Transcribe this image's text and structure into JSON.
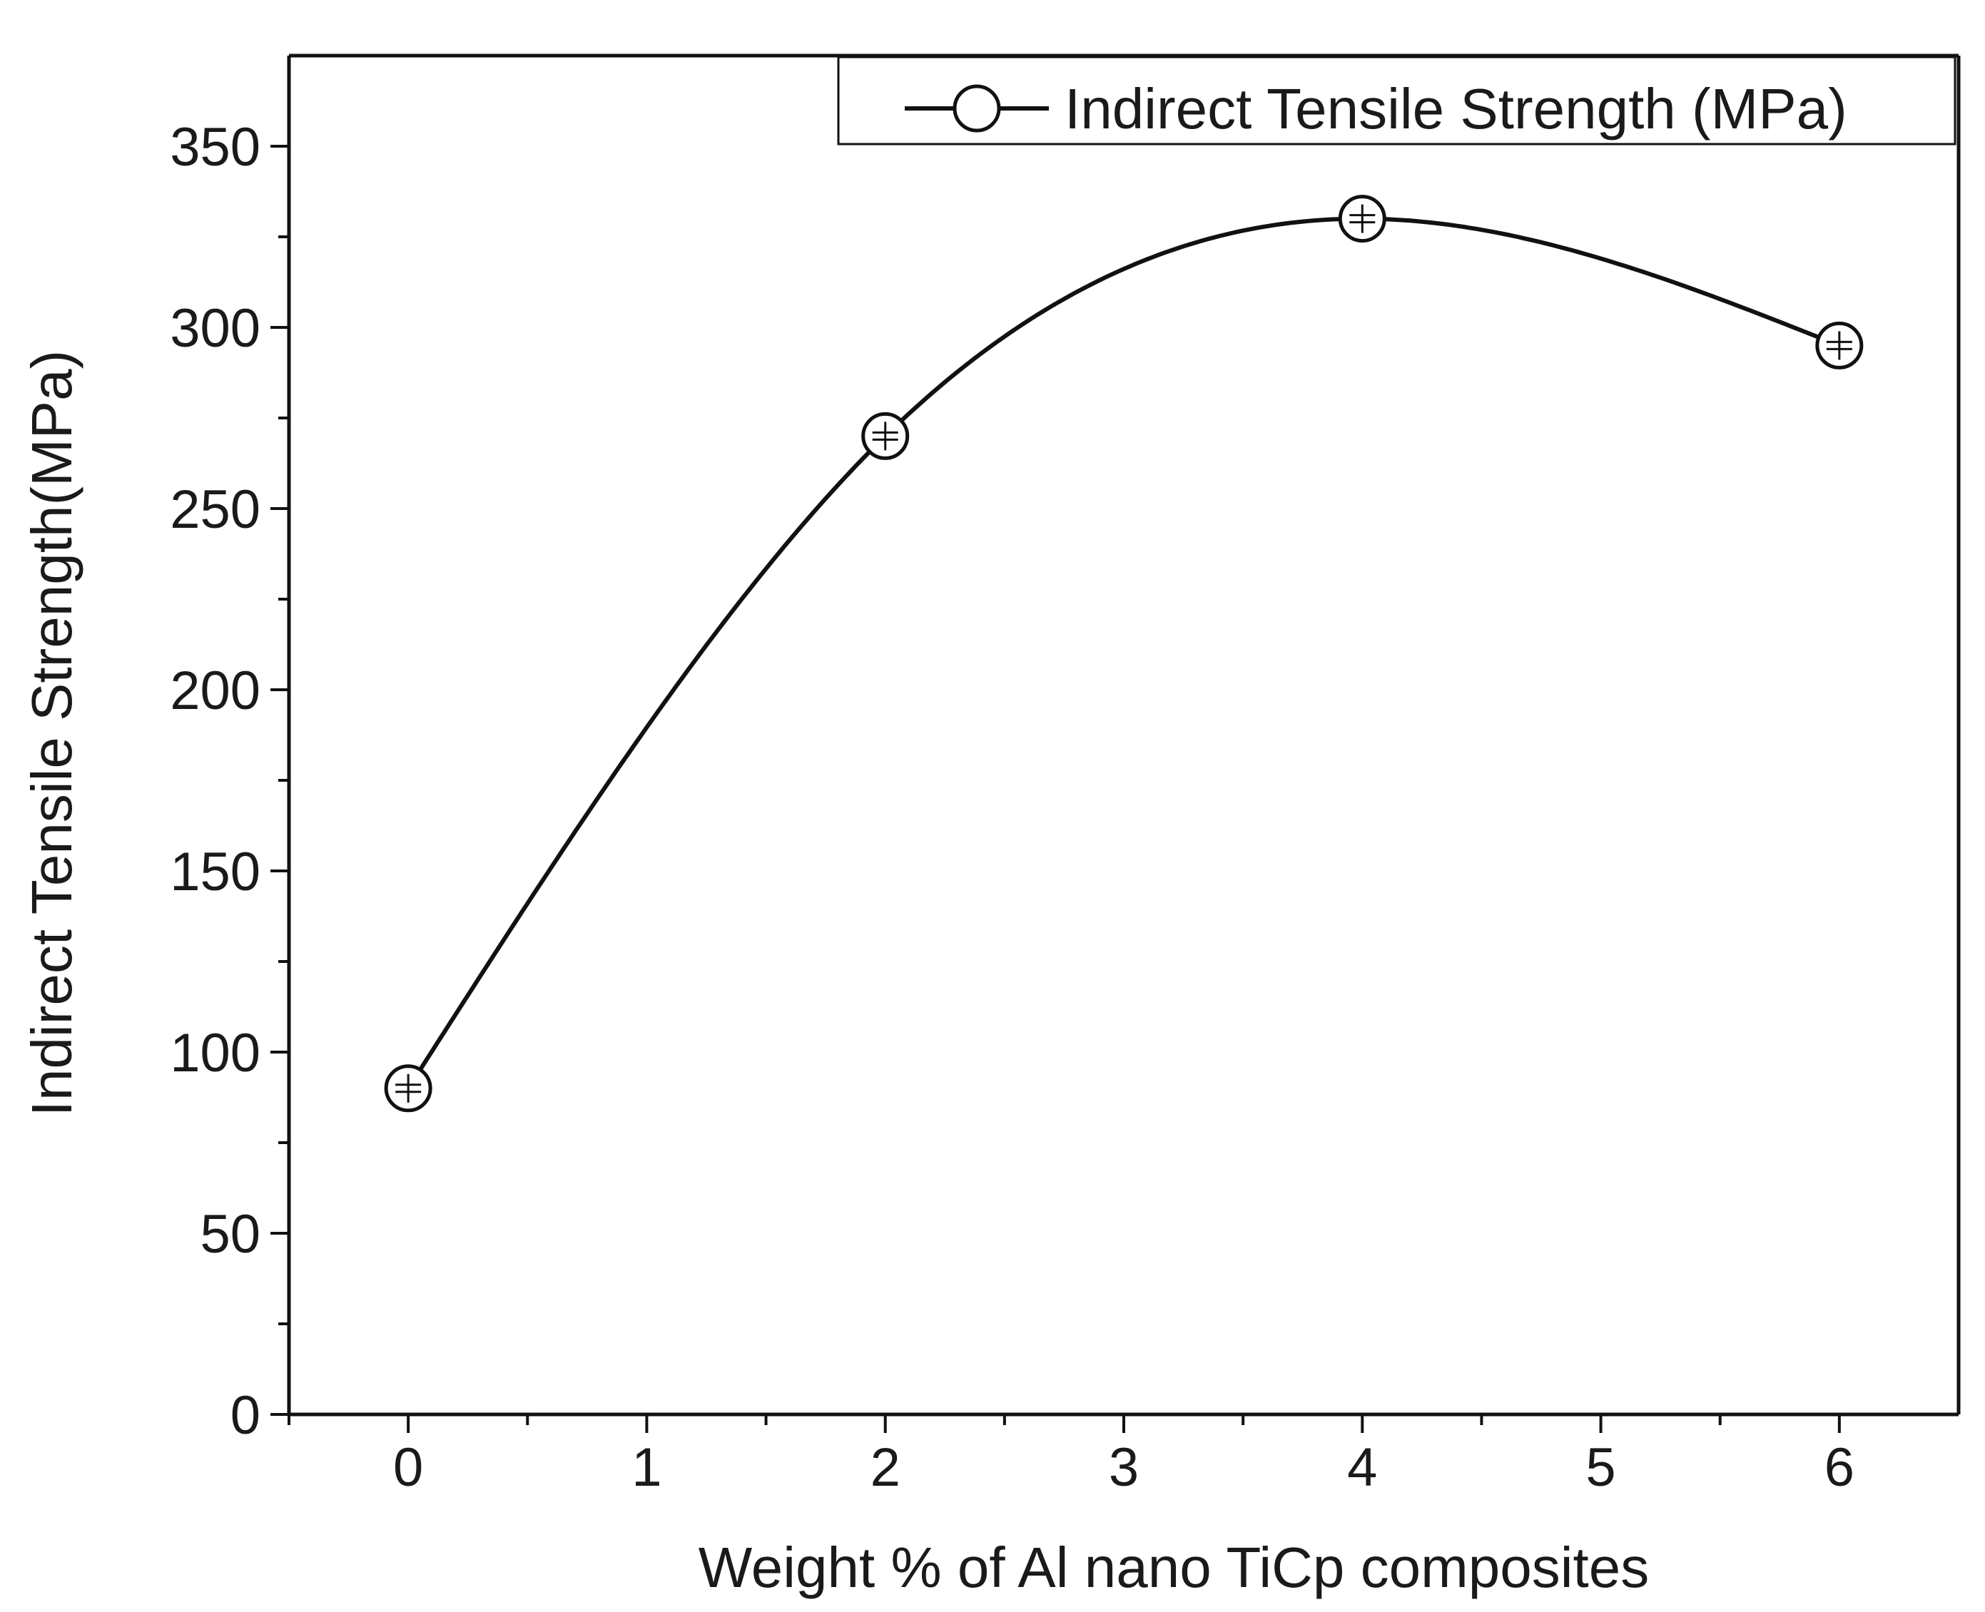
{
  "chart_data": {
    "type": "line",
    "title": "",
    "xlabel": "Weight % of Al nano TiCp composites",
    "ylabel": "Indirect Tensile Strength(MPa)",
    "xlim": [
      -0.5,
      6.5
    ],
    "ylim": [
      0,
      375
    ],
    "x_ticks": [
      0,
      1,
      2,
      3,
      4,
      5,
      6
    ],
    "x_tick_labels": [
      "0",
      "1",
      "2",
      "3",
      "4",
      "5",
      "6"
    ],
    "x_minor_ticks": [
      -0.5,
      0.5,
      1.5,
      2.5,
      3.5,
      4.5,
      5.5
    ],
    "y_ticks": [
      0,
      50,
      100,
      150,
      200,
      250,
      300,
      350
    ],
    "y_tick_labels": [
      "0",
      "50",
      "100",
      "150",
      "200",
      "250",
      "300",
      "350"
    ],
    "y_minor_ticks": [
      25,
      75,
      125,
      175,
      225,
      275,
      325
    ],
    "grid": false,
    "legend_position": "top-right",
    "line_style": "smooth spline",
    "marker": "open circle with error bar",
    "colors": {
      "line": "#111111",
      "marker_fill": "#ffffff"
    },
    "series": [
      {
        "name": "Indirect Tensile Strength (MPa)",
        "x": [
          0,
          2,
          4,
          6
        ],
        "y": [
          90,
          270,
          330,
          295
        ]
      }
    ]
  }
}
